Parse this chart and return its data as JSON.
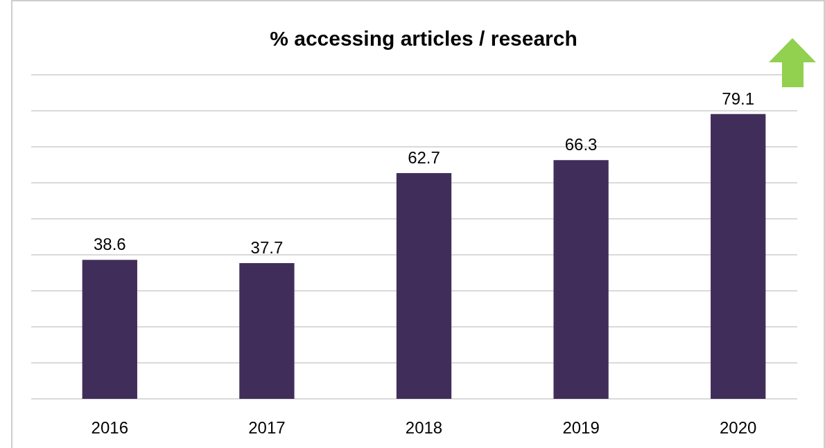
{
  "chart_data": {
    "type": "bar",
    "title": "% accessing articles / research",
    "categories": [
      "2016",
      "2017",
      "2018",
      "2019",
      "2020"
    ],
    "values": [
      38.6,
      37.7,
      62.7,
      66.3,
      79.1
    ],
    "color": "#412d5a",
    "ylim": [
      0,
      90
    ],
    "yticks": [
      {
        "value": 0,
        "label": null
      },
      {
        "value": 10,
        "label": null
      },
      {
        "value": 20,
        "label": null
      },
      {
        "value": 30,
        "label": null
      },
      {
        "value": 40,
        "label": null
      },
      {
        "value": 50,
        "label": null
      },
      {
        "value": 60,
        "label": null
      },
      {
        "value": 70,
        "label": null
      },
      {
        "value": 80,
        "label": null
      },
      {
        "value": 90,
        "label": null
      }
    ],
    "grid": "y",
    "tick_labels": "x",
    "data_labels": true
  }
}
